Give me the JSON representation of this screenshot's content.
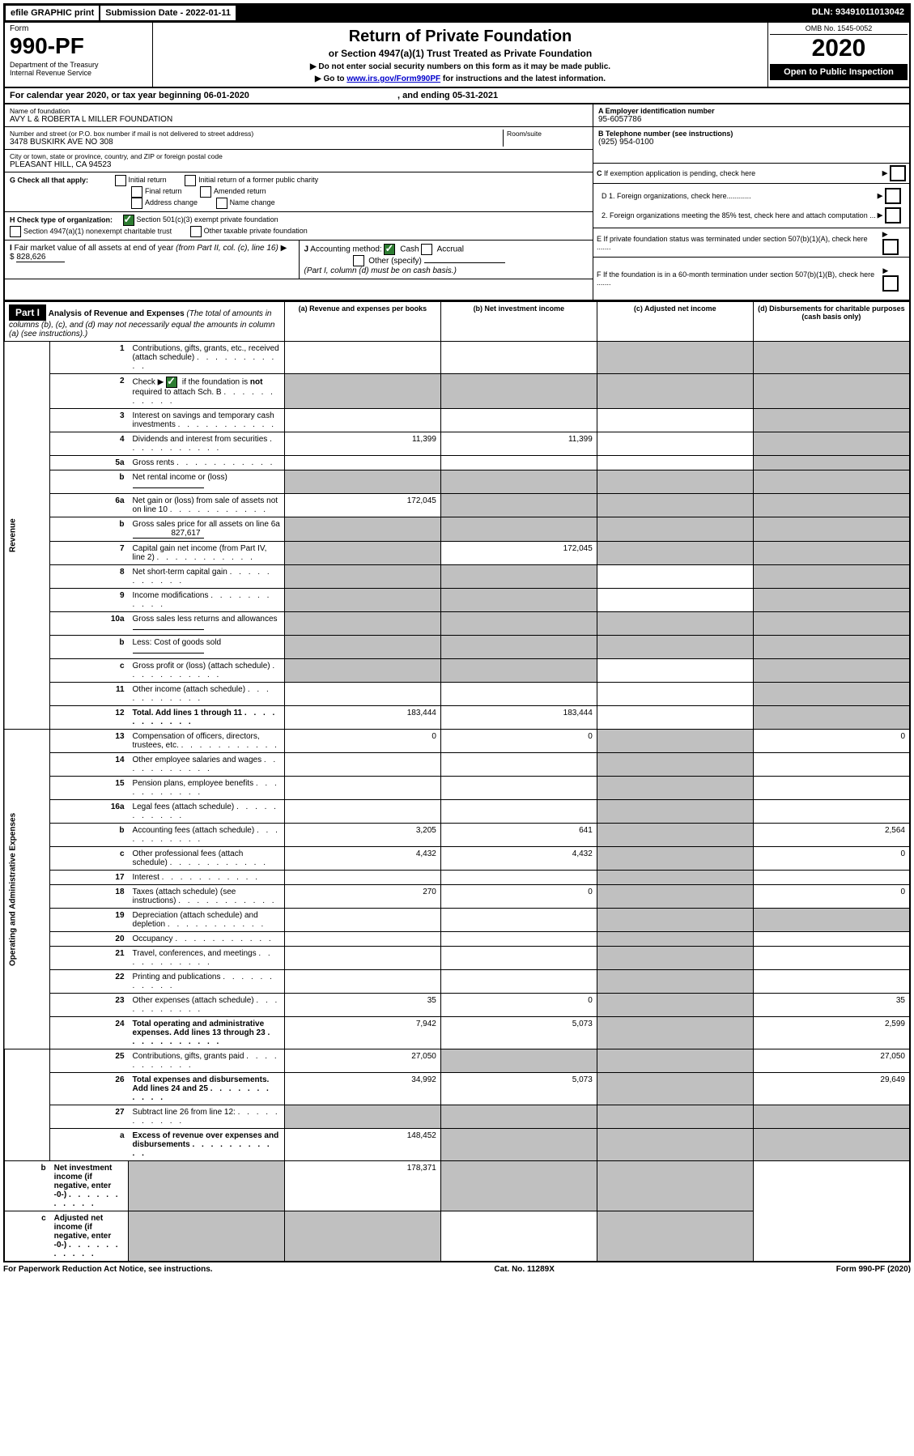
{
  "top_bar": {
    "efile": "efile GRAPHIC print",
    "submission": "Submission Date - 2022-01-11",
    "dln": "DLN: 93491011013042"
  },
  "header": {
    "form_label": "Form",
    "form_number": "990-PF",
    "dept": "Department of the Treasury\nInternal Revenue Service",
    "title": "Return of Private Foundation",
    "subtitle": "or Section 4947(a)(1) Trust Treated as Private Foundation",
    "note1": "▶ Do not enter social security numbers on this form as it may be made public.",
    "note2": "▶ Go to www.irs.gov/Form990PF for instructions and the latest information.",
    "omb": "OMB No. 1545-0052",
    "year": "2020",
    "open_public": "Open to Public Inspection"
  },
  "cal_year": {
    "prefix": "For calendar year 2020, or tax year beginning ",
    "begin": "06-01-2020",
    "mid": " , and ending ",
    "end": "05-31-2021"
  },
  "name_block": {
    "label": "Name of foundation",
    "value": "AVY L & ROBERTA L MILLER FOUNDATION"
  },
  "ein_block": {
    "label": "A Employer identification number",
    "value": "95-6057786"
  },
  "address_block": {
    "label": "Number and street (or P.O. box number if mail is not delivered to street address)",
    "value": "3478 BUSKIRK AVE NO 308",
    "room_label": "Room/suite"
  },
  "phone_block": {
    "label": "B Telephone number (see instructions)",
    "value": "(925) 954-0100"
  },
  "city_block": {
    "label": "City or town, state or province, country, and ZIP or foreign postal code",
    "value": "PLEASANT HILL, CA  94523"
  },
  "c_block": {
    "label": "C If exemption application is pending, check here"
  },
  "g_block": {
    "label": "G Check all that apply:",
    "opts": [
      "Initial return",
      "Initial return of a former public charity",
      "Final return",
      "Amended return",
      "Address change",
      "Name change"
    ]
  },
  "d_block": {
    "d1": "D 1. Foreign organizations, check here............",
    "d2": "2. Foreign organizations meeting the 85% test, check here and attach computation ..."
  },
  "h_block": {
    "label": "H Check type of organization:",
    "opt1": "Section 501(c)(3) exempt private foundation",
    "opt2": "Section 4947(a)(1) nonexempt charitable trust",
    "opt3": "Other taxable private foundation"
  },
  "e_block": {
    "label": "E If private foundation status was terminated under section 507(b)(1)(A), check here ......."
  },
  "i_block": {
    "label": "I Fair market value of all assets at end of year (from Part II, col. (c), line 16) ▶ $",
    "value": "828,626"
  },
  "j_block": {
    "label": "J Accounting method:",
    "cash": "Cash",
    "accrual": "Accrual",
    "other": "Other (specify)",
    "note": "(Part I, column (d) must be on cash basis.)"
  },
  "f_block": {
    "label": "F If the foundation is in a 60-month termination under section 507(b)(1)(B), check here ......."
  },
  "part1": {
    "title": "Part I",
    "heading": "Analysis of Revenue and Expenses",
    "sub": "(The total of amounts in columns (b), (c), and (d) may not necessarily equal the amounts in column (a) (see instructions).)",
    "col_a": "(a) Revenue and expenses per books",
    "col_b": "(b) Net investment income",
    "col_c": "(c) Adjusted net income",
    "col_d": "(d) Disbursements for charitable purposes (cash basis only)"
  },
  "sections": {
    "revenue": "Revenue",
    "expenses": "Operating and Administrative Expenses"
  },
  "rows": [
    {
      "n": "1",
      "d": "Contributions, gifts, grants, etc., received (attach schedule)",
      "a": "",
      "b": "",
      "c": "shaded",
      "dd": "shaded"
    },
    {
      "n": "2",
      "d": "Check ▶ ☑ if the foundation is not required to attach Sch. B",
      "a": "shaded",
      "b": "shaded",
      "c": "shaded",
      "dd": "shaded",
      "check": true
    },
    {
      "n": "3",
      "d": "Interest on savings and temporary cash investments",
      "a": "",
      "b": "",
      "c": "",
      "dd": "shaded"
    },
    {
      "n": "4",
      "d": "Dividends and interest from securities",
      "a": "11,399",
      "b": "11,399",
      "c": "",
      "dd": "shaded"
    },
    {
      "n": "5a",
      "d": "Gross rents",
      "a": "",
      "b": "",
      "c": "",
      "dd": "shaded"
    },
    {
      "n": "b",
      "d": "Net rental income or (loss)",
      "a": "shaded",
      "b": "shaded",
      "c": "shaded",
      "dd": "shaded",
      "inline": true
    },
    {
      "n": "6a",
      "d": "Net gain or (loss) from sale of assets not on line 10",
      "a": "172,045",
      "b": "shaded",
      "c": "shaded",
      "dd": "shaded"
    },
    {
      "n": "b",
      "d": "Gross sales price for all assets on line 6a",
      "a": "shaded",
      "b": "shaded",
      "c": "shaded",
      "dd": "shaded",
      "inline": true,
      "inline_val": "827,617"
    },
    {
      "n": "7",
      "d": "Capital gain net income (from Part IV, line 2)",
      "a": "shaded",
      "b": "172,045",
      "c": "shaded",
      "dd": "shaded"
    },
    {
      "n": "8",
      "d": "Net short-term capital gain",
      "a": "shaded",
      "b": "shaded",
      "c": "",
      "dd": "shaded"
    },
    {
      "n": "9",
      "d": "Income modifications",
      "a": "shaded",
      "b": "shaded",
      "c": "",
      "dd": "shaded"
    },
    {
      "n": "10a",
      "d": "Gross sales less returns and allowances",
      "a": "shaded",
      "b": "shaded",
      "c": "shaded",
      "dd": "shaded",
      "inline": true
    },
    {
      "n": "b",
      "d": "Less: Cost of goods sold",
      "a": "shaded",
      "b": "shaded",
      "c": "shaded",
      "dd": "shaded",
      "inline": true
    },
    {
      "n": "c",
      "d": "Gross profit or (loss) (attach schedule)",
      "a": "shaded",
      "b": "shaded",
      "c": "",
      "dd": "shaded"
    },
    {
      "n": "11",
      "d": "Other income (attach schedule)",
      "a": "",
      "b": "",
      "c": "",
      "dd": "shaded"
    },
    {
      "n": "12",
      "d": "Total. Add lines 1 through 11",
      "a": "183,444",
      "b": "183,444",
      "c": "",
      "dd": "shaded",
      "bold": true
    },
    {
      "n": "13",
      "d": "Compensation of officers, directors, trustees, etc.",
      "a": "0",
      "b": "0",
      "c": "shaded",
      "dd": "0"
    },
    {
      "n": "14",
      "d": "Other employee salaries and wages",
      "a": "",
      "b": "",
      "c": "shaded",
      "dd": ""
    },
    {
      "n": "15",
      "d": "Pension plans, employee benefits",
      "a": "",
      "b": "",
      "c": "shaded",
      "dd": ""
    },
    {
      "n": "16a",
      "d": "Legal fees (attach schedule)",
      "a": "",
      "b": "",
      "c": "shaded",
      "dd": ""
    },
    {
      "n": "b",
      "d": "Accounting fees (attach schedule)",
      "a": "3,205",
      "b": "641",
      "c": "shaded",
      "dd": "2,564"
    },
    {
      "n": "c",
      "d": "Other professional fees (attach schedule)",
      "a": "4,432",
      "b": "4,432",
      "c": "shaded",
      "dd": "0"
    },
    {
      "n": "17",
      "d": "Interest",
      "a": "",
      "b": "",
      "c": "shaded",
      "dd": ""
    },
    {
      "n": "18",
      "d": "Taxes (attach schedule) (see instructions)",
      "a": "270",
      "b": "0",
      "c": "shaded",
      "dd": "0"
    },
    {
      "n": "19",
      "d": "Depreciation (attach schedule) and depletion",
      "a": "",
      "b": "",
      "c": "shaded",
      "dd": "shaded"
    },
    {
      "n": "20",
      "d": "Occupancy",
      "a": "",
      "b": "",
      "c": "shaded",
      "dd": ""
    },
    {
      "n": "21",
      "d": "Travel, conferences, and meetings",
      "a": "",
      "b": "",
      "c": "shaded",
      "dd": ""
    },
    {
      "n": "22",
      "d": "Printing and publications",
      "a": "",
      "b": "",
      "c": "shaded",
      "dd": ""
    },
    {
      "n": "23",
      "d": "Other expenses (attach schedule)",
      "a": "35",
      "b": "0",
      "c": "shaded",
      "dd": "35"
    },
    {
      "n": "24",
      "d": "Total operating and administrative expenses. Add lines 13 through 23",
      "a": "7,942",
      "b": "5,073",
      "c": "shaded",
      "dd": "2,599",
      "bold": true
    },
    {
      "n": "25",
      "d": "Contributions, gifts, grants paid",
      "a": "27,050",
      "b": "shaded",
      "c": "shaded",
      "dd": "27,050"
    },
    {
      "n": "26",
      "d": "Total expenses and disbursements. Add lines 24 and 25",
      "a": "34,992",
      "b": "5,073",
      "c": "shaded",
      "dd": "29,649",
      "bold": true
    },
    {
      "n": "27",
      "d": "Subtract line 26 from line 12:",
      "a": "shaded",
      "b": "shaded",
      "c": "shaded",
      "dd": "shaded"
    },
    {
      "n": "a",
      "d": "Excess of revenue over expenses and disbursements",
      "a": "148,452",
      "b": "shaded",
      "c": "shaded",
      "dd": "shaded",
      "bold": true
    },
    {
      "n": "b",
      "d": "Net investment income (if negative, enter -0-)",
      "a": "shaded",
      "b": "178,371",
      "c": "shaded",
      "dd": "shaded",
      "bold": true
    },
    {
      "n": "c",
      "d": "Adjusted net income (if negative, enter -0-)",
      "a": "shaded",
      "b": "shaded",
      "c": "",
      "dd": "shaded",
      "bold": true
    }
  ],
  "footer": {
    "left": "For Paperwork Reduction Act Notice, see instructions.",
    "mid": "Cat. No. 11289X",
    "right": "Form 990-PF (2020)"
  }
}
